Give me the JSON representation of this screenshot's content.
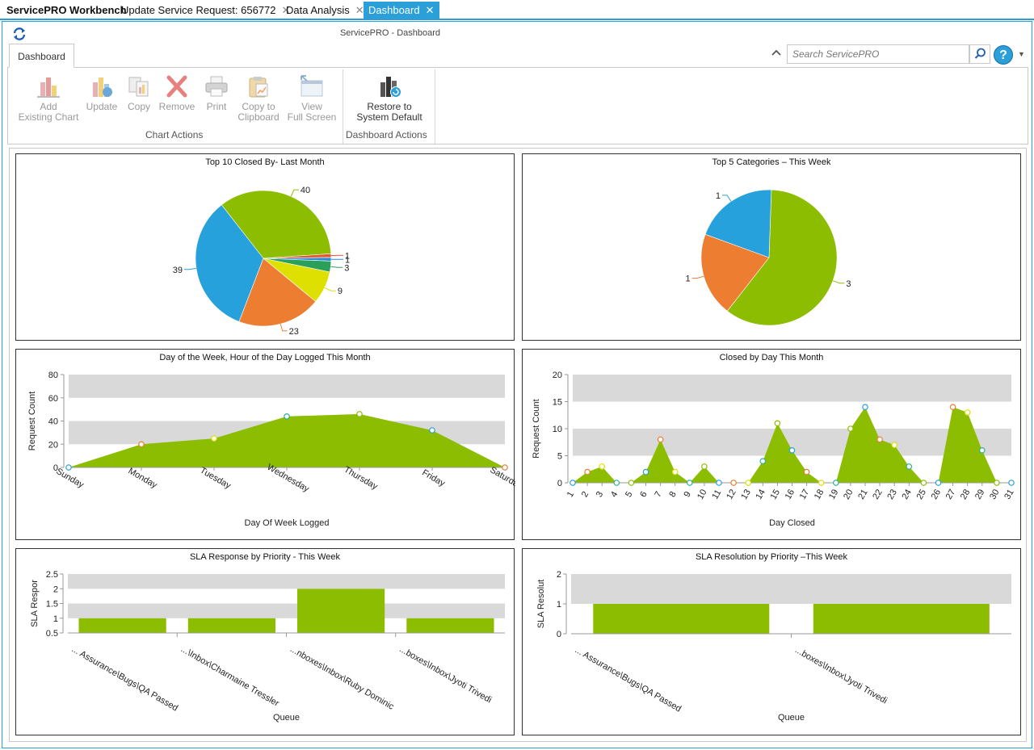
{
  "tabs": [
    {
      "label": "ServicePRO Workbench",
      "closable": false,
      "active": false
    },
    {
      "label": "Update Service Request: 656772",
      "closable": true,
      "active": false
    },
    {
      "label": "Data Analysis",
      "closable": true,
      "active": false
    },
    {
      "label": "Dashboard",
      "closable": true,
      "active": true
    }
  ],
  "window": {
    "title": "ServicePRO - Dashboard"
  },
  "ribbon": {
    "tab": "Dashboard",
    "chart_actions": {
      "label": "Chart Actions",
      "buttons": [
        {
          "line1": "Add",
          "line2": "Existing Chart",
          "icon": "add-chart-icon"
        },
        {
          "line1": "Update",
          "line2": "",
          "icon": "update-chart-icon"
        },
        {
          "line1": "Copy",
          "line2": "",
          "icon": "copy-icon"
        },
        {
          "line1": "Remove",
          "line2": "",
          "icon": "remove-icon"
        },
        {
          "line1": "Print",
          "line2": "",
          "icon": "printer-icon"
        },
        {
          "line1": "Copy to",
          "line2": "Clipboard",
          "icon": "clipboard-icon"
        },
        {
          "line1": "View",
          "line2": "Full Screen",
          "icon": "fullscreen-icon"
        }
      ]
    },
    "dashboard_actions": {
      "label": "Dashboard Actions",
      "buttons": [
        {
          "line1": "Restore to",
          "line2": "System Default",
          "icon": "restore-default-icon"
        }
      ]
    }
  },
  "search": {
    "placeholder": "Search ServicePRO",
    "value": ""
  },
  "help": {
    "symbol": "?"
  },
  "colors": {
    "accent": "#2a9fd8",
    "green": "#8cbd00",
    "blue": "#27a1dc",
    "orange": "#ed7d31",
    "yellow": "#dde000",
    "teal": "#2bb09a",
    "band": "#d9d9d9"
  },
  "chart_data": [
    {
      "type": "pie",
      "title": "Top 10 Closed By- Last Month",
      "slices": [
        {
          "value": 40,
          "label": "40",
          "color": "#8cbd00"
        },
        {
          "value": 1,
          "label": "1",
          "color": "#e4572e"
        },
        {
          "value": 1,
          "label": "1",
          "color": "#2a8ad8"
        },
        {
          "value": 3,
          "label": "3",
          "color": "#2ba05a"
        },
        {
          "value": 9,
          "label": "9",
          "color": "#dde000"
        },
        {
          "value": 23,
          "label": "23",
          "color": "#ed7d31"
        },
        {
          "value": 39,
          "label": "39",
          "color": "#27a1dc"
        }
      ]
    },
    {
      "type": "pie",
      "title": "Top 5 Categories – This Week",
      "slices": [
        {
          "value": 3,
          "label": "3",
          "color": "#8cbd00"
        },
        {
          "value": 1,
          "label": "1",
          "color": "#ed7d31"
        },
        {
          "value": 1,
          "label": "1",
          "color": "#27a1dc"
        }
      ]
    },
    {
      "type": "area",
      "title": "Day of the Week, Hour of the Day Logged This Month",
      "xlabel": "Day Of Week Logged",
      "ylabel": "Request Count",
      "ylim": [
        0,
        80
      ],
      "yticks": [
        0,
        20,
        40,
        60,
        80
      ],
      "categories": [
        "Sunday",
        "Monday",
        "Tuesday",
        "Wednesday",
        "Thursday",
        "Friday",
        "Saturday"
      ],
      "values": [
        0,
        20,
        25,
        44,
        46,
        32,
        0
      ]
    },
    {
      "type": "area",
      "title": "Closed by Day This Month",
      "xlabel": "Day Closed",
      "ylabel": "Request Count",
      "ylim": [
        0,
        20
      ],
      "yticks": [
        0,
        5,
        10,
        15,
        20
      ],
      "categories": [
        "1",
        "2",
        "3",
        "4",
        "5",
        "6",
        "7",
        "8",
        "9",
        "10",
        "11",
        "12",
        "13",
        "14",
        "15",
        "16",
        "17",
        "18",
        "19",
        "20",
        "21",
        "22",
        "23",
        "24",
        "25",
        "26",
        "27",
        "28",
        "29",
        "30",
        "31"
      ],
      "values": [
        0,
        2,
        3,
        0,
        0,
        2,
        8,
        2,
        0,
        3,
        0,
        0,
        0,
        4,
        11,
        6,
        2,
        0,
        0,
        10,
        14,
        8,
        7,
        3,
        0,
        0,
        14,
        13,
        6,
        0,
        0
      ]
    },
    {
      "type": "bar",
      "title": "SLA Response by Priority - This Week",
      "xlabel": "Queue",
      "ylabel": "SLA Respor",
      "ylim": [
        0.5,
        2.5
      ],
      "yticks": [
        "0.5",
        "1",
        "1.5",
        "2",
        "2.5"
      ],
      "categories": [
        "... Assurance\\Bugs\\QA Passed",
        "...\\Inbox\\Charmaine Tressler",
        "...nboxes\\Inbox\\Ruby Dominic",
        "...boxes\\Inbox\\Jyoti Trivedi"
      ],
      "values": [
        1,
        1,
        2,
        1
      ]
    },
    {
      "type": "bar",
      "title": "SLA Resolution by Priority –This Week",
      "xlabel": "Queue",
      "ylabel": "SLA Resolut",
      "ylim": [
        0,
        2
      ],
      "yticks": [
        "0",
        "1",
        "2"
      ],
      "categories": [
        "... Assurance\\Bugs\\QA Passed",
        "...boxes\\Inbox\\Jyoti Trivedi"
      ],
      "values": [
        1,
        1
      ]
    }
  ]
}
